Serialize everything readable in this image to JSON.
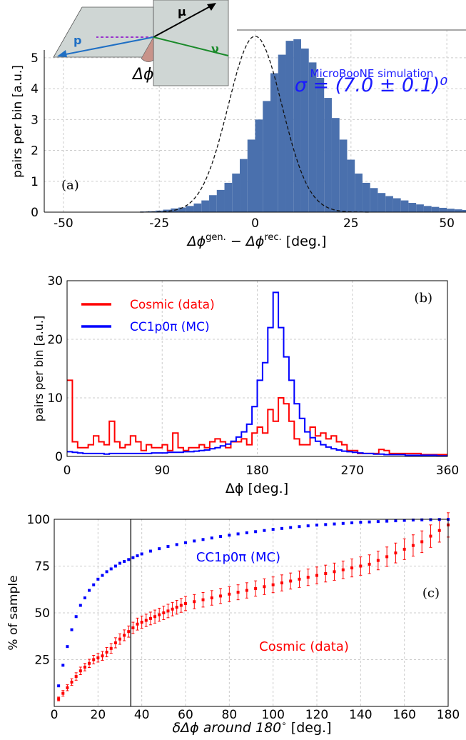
{
  "chart_data": [
    {
      "type": "bar",
      "panel_label": "(a)",
      "xlabel": "Δϕᵍᵉⁿ· − Δϕʳᵉᶜ· [deg.]",
      "xlabel_parts": {
        "a": "Δϕ",
        "a_sup": "gen.",
        "minus": " − ",
        "b": "Δϕ",
        "b_sup": "rec.",
        "unit": " [deg.]"
      },
      "ylabel": "pairs per bin [a.u.]",
      "xlim": [
        -55,
        55
      ],
      "ylim": [
        0,
        5.9
      ],
      "xticks": [
        -50,
        -25,
        0,
        25,
        50
      ],
      "yticks": [
        0,
        1,
        2,
        3,
        4,
        5
      ],
      "grid": true,
      "annotation_title": "MicroBooNE simulation",
      "annotation_sigma": "σ = (7.0 ± 0.1)⁰",
      "inset_labels": {
        "p": "p",
        "mu": "μ",
        "nu": "ν",
        "dphi": "Δϕ"
      },
      "bins": {
        "start": -30,
        "width": 2,
        "values": [
          0.02,
          0.03,
          0.05,
          0.08,
          0.12,
          0.15,
          0.2,
          0.28,
          0.38,
          0.55,
          0.72,
          0.95,
          1.25,
          1.72,
          2.35,
          3.0,
          3.6,
          4.5,
          5.1,
          5.55,
          5.6,
          5.3,
          4.85,
          4.35,
          3.7,
          3.05,
          2.35,
          1.7,
          1.25,
          0.95,
          0.78,
          0.62,
          0.52,
          0.45,
          0.38,
          0.3,
          0.25,
          0.2,
          0.17,
          0.14,
          0.11,
          0.09,
          0.07,
          0.06,
          0.05,
          0.04,
          0.03,
          0.02,
          0.02,
          0.01
        ]
      },
      "fit": {
        "type": "gaussian",
        "mean": 0,
        "sigma": 7.0,
        "amplitude": 5.7
      }
    },
    {
      "type": "line",
      "panel_label": "(b)",
      "xlabel": "Δϕ [deg.]",
      "ylabel": "pairs per bin [a.u.]",
      "xlim": [
        0,
        360
      ],
      "ylim": [
        0,
        30
      ],
      "xticks": [
        0,
        90,
        180,
        270,
        360
      ],
      "yticks": [
        0,
        10,
        20,
        30
      ],
      "grid": true,
      "legend_position": "upper-left",
      "step": true,
      "bin_width": 5,
      "series": [
        {
          "name": "Cosmic (data)",
          "color": "#ff0000",
          "values": [
            13,
            2.5,
            1.5,
            1.5,
            2,
            3.5,
            2.5,
            2,
            6,
            2.5,
            1.5,
            2,
            3.5,
            2.5,
            1,
            2,
            1.5,
            1.5,
            2,
            1,
            4,
            1.5,
            1,
            1.5,
            1.5,
            2,
            1.5,
            2.5,
            3,
            2.5,
            1.5,
            2.5,
            2.5,
            3,
            2,
            4,
            5,
            4,
            8,
            6,
            10,
            9,
            6,
            3,
            2,
            2,
            5,
            3.5,
            4,
            3,
            3.5,
            2.5,
            2,
            1,
            1,
            0.5,
            0.5,
            0.5,
            0.5,
            1.2,
            1,
            0.5,
            0.5,
            0.5,
            0.5,
            0.5,
            0.5,
            0.3,
            0.3,
            0.3,
            0.3,
            0.3,
            0.3,
            0.3,
            0,
            0,
            0.3,
            0.3,
            0.5,
            1,
            0.5,
            0.3,
            0,
            0.5,
            0.3,
            0.8,
            0.5,
            0.5,
            0.3,
            0.3,
            0,
            0,
            0,
            0,
            0,
            0,
            0,
            0,
            0,
            0,
            0,
            0,
            0,
            0,
            0,
            0,
            0,
            0,
            0,
            0,
            0,
            0
          ]
        },
        {
          "name": "CC1p0π (MC)",
          "color": "#0000ff",
          "values": [
            0.8,
            0.7,
            0.6,
            0.5,
            0.5,
            0.5,
            0.5,
            0.4,
            0.5,
            0.5,
            0.5,
            0.5,
            0.5,
            0.5,
            0.5,
            0.5,
            0.6,
            0.6,
            0.6,
            0.7,
            0.7,
            0.7,
            0.8,
            0.8,
            0.9,
            1,
            1.1,
            1.3,
            1.5,
            1.8,
            2.1,
            2.6,
            3.3,
            4.2,
            5.5,
            8.5,
            13,
            16,
            22,
            28,
            22,
            17,
            13,
            9,
            6.5,
            4.2,
            3.2,
            2.6,
            2.0,
            1.6,
            1.3,
            1.1,
            0.9,
            0.8,
            0.7,
            0.6,
            0.5,
            0.5,
            0.4,
            0.4,
            0.3,
            0.3,
            0.3,
            0.3,
            0.2,
            0.2,
            0.2,
            0.2,
            0.2,
            0.2,
            0.1,
            0.1
          ]
        }
      ]
    },
    {
      "type": "scatter",
      "panel_label": "(c)",
      "xlabel": "δΔϕ around 180° [deg.]",
      "xlabel_parts": {
        "main": "δΔϕ around 180",
        "deg": "∘",
        "unit": " [deg.]"
      },
      "ylabel": "% of sample",
      "xlim": [
        0,
        180
      ],
      "ylim": [
        0,
        100
      ],
      "xticks": [
        0,
        20,
        40,
        60,
        80,
        100,
        120,
        140,
        160,
        180
      ],
      "yticks": [
        25,
        50,
        75,
        100
      ],
      "grid": true,
      "vline_x": 35,
      "series": [
        {
          "name": "CC1p0π (MC)",
          "color": "#0000ff",
          "points": [
            [
              2,
              11
            ],
            [
              4,
              22
            ],
            [
              6,
              32
            ],
            [
              8,
              41
            ],
            [
              10,
              48
            ],
            [
              12,
              54
            ],
            [
              14,
              58
            ],
            [
              16,
              62
            ],
            [
              18,
              65
            ],
            [
              20,
              68
            ],
            [
              22,
              70
            ],
            [
              24,
              72
            ],
            [
              26,
              73.5
            ],
            [
              28,
              75
            ],
            [
              30,
              76.5
            ],
            [
              32,
              77.5
            ],
            [
              34,
              78.5
            ],
            [
              36,
              79.5
            ],
            [
              38,
              80.5
            ],
            [
              40,
              81.5
            ],
            [
              44,
              83
            ],
            [
              48,
              84.3
            ],
            [
              52,
              85.5
            ],
            [
              56,
              86.5
            ],
            [
              60,
              87.5
            ],
            [
              64,
              88.4
            ],
            [
              68,
              89.2
            ],
            [
              72,
              90
            ],
            [
              76,
              90.8
            ],
            [
              80,
              91.5
            ],
            [
              84,
              92.2
            ],
            [
              88,
              92.8
            ],
            [
              92,
              93.4
            ],
            [
              96,
              94
            ],
            [
              100,
              94.6
            ],
            [
              104,
              95.1
            ],
            [
              108,
              95.6
            ],
            [
              112,
              96.1
            ],
            [
              116,
              96.5
            ],
            [
              120,
              96.9
            ],
            [
              124,
              97.2
            ],
            [
              128,
              97.5
            ],
            [
              132,
              97.8
            ],
            [
              136,
              98.1
            ],
            [
              140,
              98.4
            ],
            [
              144,
              98.6
            ],
            [
              148,
              98.8
            ],
            [
              152,
              99
            ],
            [
              156,
              99.2
            ],
            [
              160,
              99.4
            ],
            [
              164,
              99.6
            ],
            [
              168,
              99.7
            ],
            [
              172,
              99.8
            ],
            [
              176,
              99.9
            ],
            [
              180,
              100
            ]
          ]
        },
        {
          "name": "Cosmic (data)",
          "color": "#ff0000",
          "error_bars": true,
          "points": [
            [
              2,
              4,
              1
            ],
            [
              4,
              7,
              1.5
            ],
            [
              6,
              10,
              1.6
            ],
            [
              8,
              13,
              1.8
            ],
            [
              10,
              16,
              2
            ],
            [
              12,
              19,
              2
            ],
            [
              14,
              21,
              2
            ],
            [
              16,
              23,
              2.2
            ],
            [
              18,
              25,
              2.3
            ],
            [
              20,
              26,
              2.3
            ],
            [
              22,
              27,
              2.4
            ],
            [
              24,
              29,
              2.5
            ],
            [
              26,
              31,
              2.6
            ],
            [
              28,
              34,
              2.7
            ],
            [
              30,
              36,
              2.8
            ],
            [
              32,
              38,
              2.9
            ],
            [
              34,
              40,
              3
            ],
            [
              36,
              42,
              3
            ],
            [
              38,
              44,
              3.2
            ],
            [
              40,
              45,
              3.3
            ],
            [
              42,
              46,
              3.3
            ],
            [
              44,
              47,
              3.4
            ],
            [
              46,
              48,
              3.5
            ],
            [
              48,
              49,
              3.5
            ],
            [
              50,
              50,
              3.6
            ],
            [
              52,
              51,
              3.6
            ],
            [
              54,
              52,
              3.6
            ],
            [
              56,
              53,
              3.7
            ],
            [
              58,
              54,
              3.7
            ],
            [
              60,
              55,
              3.8
            ],
            [
              64,
              56,
              3.8
            ],
            [
              68,
              57,
              3.9
            ],
            [
              72,
              58,
              3.9
            ],
            [
              76,
              59,
              4
            ],
            [
              80,
              60,
              4
            ],
            [
              84,
              61,
              4
            ],
            [
              88,
              62,
              4.1
            ],
            [
              92,
              63,
              4.1
            ],
            [
              96,
              64,
              4.2
            ],
            [
              100,
              65,
              4.2
            ],
            [
              104,
              66,
              4.3
            ],
            [
              108,
              67,
              4.3
            ],
            [
              112,
              68,
              4.4
            ],
            [
              116,
              69,
              4.4
            ],
            [
              120,
              70,
              4.5
            ],
            [
              124,
              71,
              4.5
            ],
            [
              128,
              72,
              4.6
            ],
            [
              132,
              73,
              4.7
            ],
            [
              136,
              74,
              4.8
            ],
            [
              140,
              75,
              4.9
            ],
            [
              144,
              76,
              5
            ],
            [
              148,
              78,
              5
            ],
            [
              152,
              80,
              5.2
            ],
            [
              156,
              82,
              5.3
            ],
            [
              160,
              84,
              5.5
            ],
            [
              164,
              86,
              5.7
            ],
            [
              168,
              88,
              5.8
            ],
            [
              172,
              91,
              6
            ],
            [
              176,
              94,
              6.2
            ],
            [
              180,
              97,
              6.5
            ]
          ]
        }
      ]
    }
  ]
}
